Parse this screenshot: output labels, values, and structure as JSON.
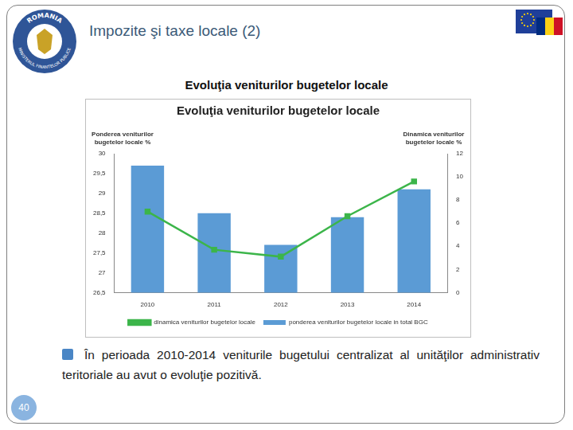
{
  "slide": {
    "title": "Impozite şi taxe locale (2)",
    "logo_text": [
      "ROMANIA",
      "MINISTERUL FINANTELOR PUBLICE"
    ],
    "heading": "Evoluţia veniturilor bugetelor locale",
    "note": "În perioada 2010-2014 veniturile bugetului centralizat al unităţilor administrativ teritoriale au avut o evoluţie pozitivă.",
    "page": 40
  },
  "chart_data": {
    "type": "bar",
    "title": "Evoluţia veniturilor bugetelor locale",
    "ylabel": "Ponderea veniturilor bugetelor locale %",
    "y2label": "Dinamica veniturilor bugetelor locale %",
    "categories": [
      "2010",
      "2011",
      "2012",
      "2013",
      "2014"
    ],
    "series": [
      {
        "name": "ponderea veniturilor bugetelor locale in total BGC",
        "type": "bar",
        "color": "#5b9bd5",
        "values": [
          29.7,
          28.5,
          27.7,
          28.4,
          29.1
        ]
      },
      {
        "name": "dinamica veniturilor bugetelor locale",
        "type": "line",
        "color": "#3cb54a",
        "marker": "square",
        "axis": "y2",
        "values": [
          7.0,
          3.7,
          3.1,
          6.6,
          9.6
        ]
      }
    ],
    "ylim": [
      26.5,
      30
    ],
    "yticks": [
      {
        "value": 26.5,
        "label": "26,5"
      },
      27,
      {
        "value": 27.5,
        "label": "27,5"
      },
      28,
      {
        "value": 28.5,
        "label": "28,5"
      },
      29,
      {
        "value": 29.5,
        "label": "29,5"
      },
      30
    ],
    "y2lim": [
      0,
      12
    ],
    "y2ticks": [
      0,
      2,
      4,
      6,
      8,
      10,
      12
    ],
    "grid": false,
    "legend": "bottom"
  }
}
